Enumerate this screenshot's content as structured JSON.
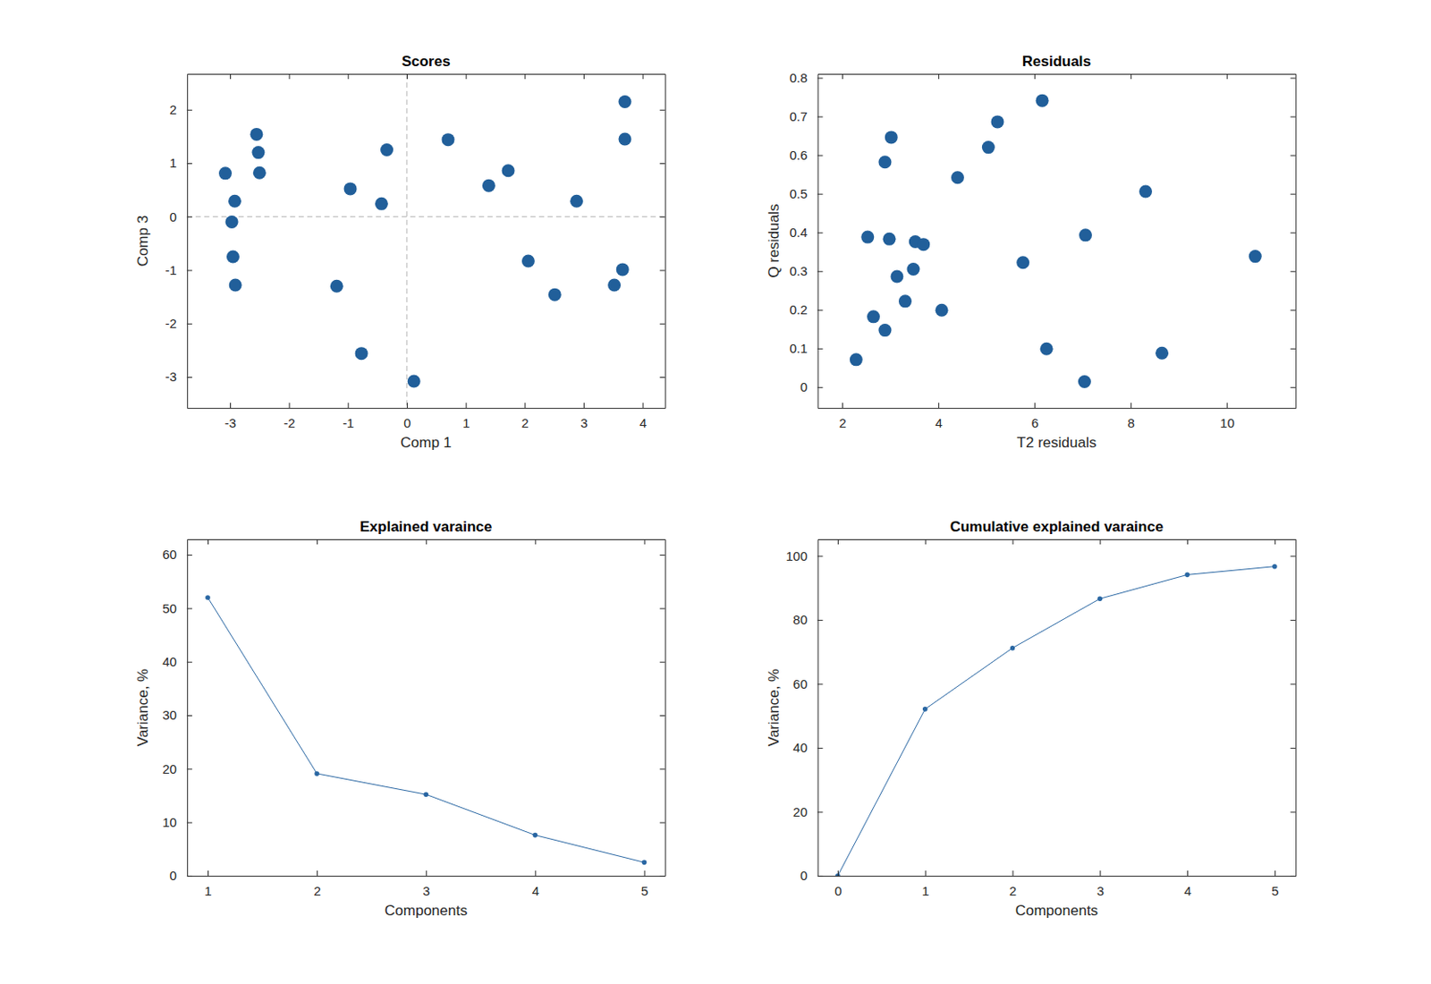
{
  "chart_data": [
    {
      "type": "scatter",
      "title": "Scores",
      "xlabel": "Comp 1",
      "ylabel": "Comp 3",
      "x": [
        -3.08,
        -2.55,
        -2.52,
        -2.5,
        -2.92,
        -2.97,
        -2.95,
        -2.91,
        -1.19,
        -0.96,
        -0.77,
        -0.43,
        -0.34,
        0.12,
        0.7,
        1.39,
        1.72,
        2.06,
        2.51,
        2.88,
        3.52,
        3.66,
        3.7,
        3.7
      ],
      "values": [
        0.81,
        1.54,
        1.2,
        0.82,
        0.29,
        -0.1,
        -0.75,
        -1.28,
        -1.3,
        0.52,
        -2.56,
        0.24,
        1.25,
        -3.08,
        1.44,
        0.58,
        0.86,
        -0.83,
        -1.46,
        0.29,
        -1.28,
        -0.99,
        1.45,
        2.15
      ],
      "color": "#215f9a",
      "marker": "circle",
      "xlim": [
        -3.73,
        4.38
      ],
      "ylim": [
        -3.58,
        2.67
      ],
      "xticks": [
        -3,
        -2,
        -1,
        0,
        1,
        2,
        3,
        4
      ],
      "yticks": [
        -3,
        -2,
        -1,
        0,
        1,
        2
      ],
      "xlines": [
        0
      ],
      "ylines": [
        0
      ]
    },
    {
      "type": "scatter",
      "title": "Residuals",
      "xlabel": "T2 residuals",
      "ylabel": "Q residuals",
      "x": [
        2.29,
        2.53,
        2.65,
        2.89,
        2.89,
        2.98,
        3.02,
        3.14,
        3.31,
        3.48,
        3.52,
        3.69,
        4.07,
        4.4,
        5.04,
        5.23,
        5.76,
        6.16,
        6.25,
        7.04,
        7.06,
        8.31,
        8.65,
        10.59
      ],
      "values": [
        0.071,
        0.388,
        0.182,
        0.582,
        0.147,
        0.383,
        0.646,
        0.286,
        0.222,
        0.305,
        0.376,
        0.369,
        0.199,
        0.542,
        0.62,
        0.686,
        0.322,
        0.741,
        0.099,
        0.014,
        0.393,
        0.506,
        0.088,
        0.338
      ],
      "color": "#215f9a",
      "marker": "circle",
      "xlim": [
        1.49,
        11.43
      ],
      "ylim": [
        -0.054,
        0.81
      ],
      "xticks": [
        2,
        4,
        6,
        8,
        10
      ],
      "yticks": [
        0,
        0.1,
        0.2,
        0.3,
        0.4,
        0.5,
        0.6,
        0.7,
        0.8
      ]
    },
    {
      "type": "line",
      "title": "Explained varaince",
      "xlabel": "Components",
      "ylabel": "Variance, %",
      "x": [
        1,
        2,
        3,
        4,
        5
      ],
      "values": [
        52.0,
        19.1,
        15.2,
        7.6,
        2.5
      ],
      "color": "#2a67a3",
      "marker": "point",
      "xlim": [
        0.81,
        5.19
      ],
      "ylim": [
        0,
        62.9
      ],
      "xticks": [
        1,
        2,
        3,
        4,
        5
      ],
      "yticks": [
        0,
        10,
        20,
        30,
        40,
        50,
        60
      ]
    },
    {
      "type": "line",
      "title": "Cumulative explained varaince",
      "xlabel": "Components",
      "ylabel": "Variance, %",
      "x": [
        0,
        1,
        2,
        3,
        4,
        5
      ],
      "values": [
        0,
        52.1,
        71.2,
        86.6,
        94.1,
        96.7
      ],
      "color": "#2a67a3",
      "marker": "point",
      "xlim": [
        -0.23,
        5.24
      ],
      "ylim": [
        0,
        105.2
      ],
      "xticks": [
        0,
        1,
        2,
        3,
        4,
        5
      ],
      "yticks": [
        0,
        20,
        40,
        60,
        80,
        100
      ]
    }
  ]
}
